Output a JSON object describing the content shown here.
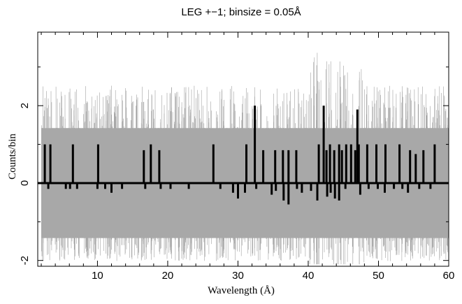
{
  "chart_data": {
    "type": "line",
    "title": "LEG +−1; binsize = 0.05Å",
    "xlabel": "Wavelength (Å)",
    "ylabel": "Counts/bin",
    "xlim": [
      1.5,
      60
    ],
    "ylim": [
      -2.15,
      3.9
    ],
    "x_ticks": [
      10,
      20,
      30,
      40,
      50,
      60
    ],
    "y_ticks": [
      -2,
      0,
      2
    ],
    "grid": false,
    "colors": {
      "data": "#000000",
      "noise": "#a0a0a0",
      "axis": "#000000"
    },
    "error_band": {
      "lower": -1.42,
      "upper": 1.42,
      "x_range": [
        2.0,
        60.0
      ]
    },
    "series": [
      {
        "style": "step",
        "points": [
          [
            2.5,
            1.0
          ],
          [
            3.3,
            1.0
          ],
          [
            6.5,
            1.0
          ],
          [
            10.1,
            1.0
          ],
          [
            16.6,
            0.85
          ],
          [
            17.6,
            1.0
          ],
          [
            18.8,
            0.85
          ],
          [
            26.5,
            1.0
          ],
          [
            31.2,
            1.0
          ],
          [
            32.4,
            2.0
          ],
          [
            33.6,
            0.85
          ],
          [
            35.3,
            0.85
          ],
          [
            36.4,
            0.85
          ],
          [
            37.2,
            0.85
          ],
          [
            38.3,
            0.85
          ],
          [
            41.5,
            1.0
          ],
          [
            42.2,
            2.0
          ],
          [
            42.6,
            0.85
          ],
          [
            43.1,
            1.0
          ],
          [
            43.7,
            0.85
          ],
          [
            44.4,
            1.0
          ],
          [
            44.8,
            0.85
          ],
          [
            45.4,
            1.0
          ],
          [
            46.1,
            1.0
          ],
          [
            46.7,
            0.85
          ],
          [
            47.0,
            1.9
          ],
          [
            47.2,
            1.0
          ],
          [
            48.4,
            1.0
          ],
          [
            49.7,
            1.0
          ],
          [
            51.0,
            1.0
          ],
          [
            53.0,
            1.0
          ],
          [
            54.5,
            0.85
          ],
          [
            55.3,
            0.75
          ],
          [
            56.4,
            0.85
          ],
          [
            58.0,
            1.0
          ],
          [
            3.0,
            -0.15
          ],
          [
            5.5,
            -0.15
          ],
          [
            6.1,
            -0.15
          ],
          [
            7.1,
            -0.15
          ],
          [
            10.0,
            -0.15
          ],
          [
            11.1,
            -0.15
          ],
          [
            12.0,
            -0.25
          ],
          [
            13.5,
            -0.15
          ],
          [
            16.8,
            -0.15
          ],
          [
            19.0,
            -0.15
          ],
          [
            20.4,
            -0.15
          ],
          [
            23.0,
            -0.15
          ],
          [
            27.5,
            -0.15
          ],
          [
            29.3,
            -0.25
          ],
          [
            30.0,
            -0.4
          ],
          [
            31.0,
            -0.25
          ],
          [
            32.6,
            -0.15
          ],
          [
            34.8,
            -0.3
          ],
          [
            35.4,
            -0.2
          ],
          [
            36.5,
            -0.45
          ],
          [
            37.2,
            -0.55
          ],
          [
            38.4,
            -0.15
          ],
          [
            39.1,
            -0.25
          ],
          [
            40.4,
            -0.2
          ],
          [
            41.3,
            -0.45
          ],
          [
            42.7,
            -0.35
          ],
          [
            43.2,
            -0.25
          ],
          [
            43.8,
            -0.4
          ],
          [
            44.4,
            -0.45
          ],
          [
            45.3,
            -0.15
          ],
          [
            47.4,
            -0.3
          ],
          [
            48.6,
            -0.15
          ],
          [
            49.9,
            -0.15
          ],
          [
            50.9,
            -0.25
          ],
          [
            52.2,
            -0.15
          ],
          [
            53.4,
            -0.15
          ],
          [
            54.2,
            -0.25
          ],
          [
            55.8,
            -0.15
          ],
          [
            57.4,
            -0.15
          ]
        ]
      }
    ]
  }
}
